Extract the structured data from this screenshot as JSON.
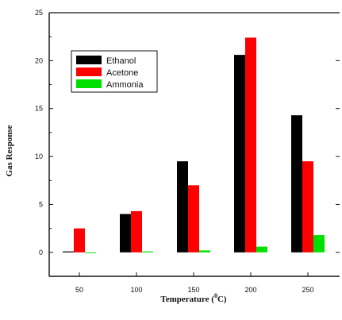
{
  "chart_data": {
    "type": "bar",
    "title": "",
    "xlabel": "Temperature",
    "xlabel_unit_base": "C",
    "xlabel_unit_sup": "0",
    "ylabel": "Gas Response",
    "categories": [
      "50",
      "100",
      "150",
      "200",
      "250"
    ],
    "ylim": [
      -2.5,
      25
    ],
    "yticks": [
      0,
      5,
      10,
      15,
      20,
      25
    ],
    "series": [
      {
        "name": "Ethanol",
        "color": "#000000",
        "values": [
          0.1,
          4.0,
          9.5,
          20.6,
          14.3
        ]
      },
      {
        "name": "Acetone",
        "color": "#ff0000",
        "values": [
          2.5,
          4.3,
          7.0,
          22.4,
          9.5
        ]
      },
      {
        "name": "Ammonia",
        "color": "#00e000",
        "values": [
          0.0,
          0.1,
          0.2,
          0.6,
          1.8
        ]
      }
    ],
    "legend_position": "top-left",
    "grid": false
  }
}
